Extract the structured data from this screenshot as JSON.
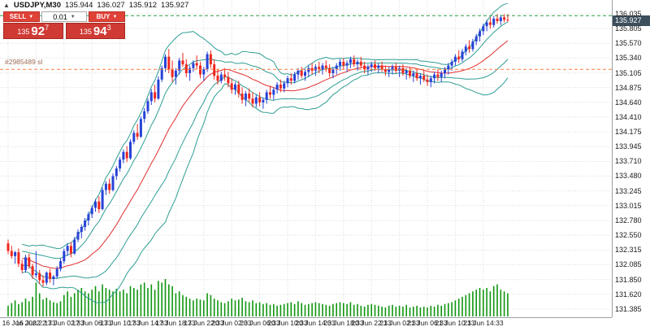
{
  "chart_info": {
    "symbol_period": "USDJPY,M30",
    "ohlc": {
      "open": "135.944",
      "high": "136.027",
      "low": "135.912",
      "close": "135.927"
    }
  },
  "trade_panel": {
    "sell_button": "SELL",
    "buy_button": "BUY",
    "lot": "0.01",
    "sell_price": {
      "major": "135",
      "pips": "92",
      "point": "7"
    },
    "buy_price": {
      "major": "135",
      "pips": "94",
      "point": "3"
    }
  },
  "order": {
    "label": "#2985489 sl",
    "sl_price": 135.16
  },
  "price_axis": {
    "current_price": "135.927",
    "ticks": [
      "136.035",
      "135.805",
      "135.570",
      "135.340",
      "135.105",
      "134.875",
      "134.640",
      "134.410",
      "134.175",
      "133.945",
      "133.710",
      "133.480",
      "133.245",
      "133.015",
      "132.780",
      "132.550",
      "132.315",
      "132.085",
      "131.850",
      "131.620",
      "131.385"
    ]
  },
  "time_axis": {
    "ticks": [
      "16 Jun 2022",
      "16 Jun 22:33",
      "17 Jun 02:33",
      "17 Jun 06:33",
      "17 Jun 10:33",
      "17 Jun 14:33",
      "17 Jun 18:33",
      "17 Jun 22:33",
      "20 Jun 02:33",
      "20 Jun 06:33",
      "20 Jun 10:33",
      "20 Jun 14:33",
      "20 Jun 18:33",
      "20 Jun 22:33",
      "21 Jun 02:33",
      "21 Jun 06:33",
      "21 Jun 10:33",
      "21 Jun 14:33"
    ]
  },
  "chart_data": {
    "type": "candlestick",
    "title": "USDJPY,M30",
    "ylim": [
      131.257,
      136.253
    ],
    "x_tick_candle_indices": [
      0,
      8,
      16,
      24,
      32,
      40,
      48,
      56,
      64,
      72,
      80,
      88,
      96,
      104,
      112,
      120,
      128,
      136
    ],
    "overlays": {
      "bollinger": {
        "period": 20,
        "deviations": [
          1,
          2
        ]
      }
    },
    "hlines": [
      {
        "name": "take-profit-line",
        "price": 136.005,
        "color": "#2f9e44",
        "style": "dashed"
      },
      {
        "name": "stop-loss-line",
        "price": 135.16,
        "color": "#ff7f3f",
        "style": "dashed"
      }
    ],
    "colors": {
      "up": "#2742d6",
      "down": "#ee281e",
      "volume": "#109610",
      "band": "#2e9e94",
      "mid": "#e03030",
      "grid": "#dcdcdc"
    },
    "candles": [
      [
        132.42,
        132.48,
        132.25,
        132.3
      ],
      [
        132.3,
        132.38,
        132.18,
        132.22
      ],
      [
        132.22,
        132.3,
        132.1,
        132.28
      ],
      [
        132.28,
        132.34,
        132.05,
        132.1
      ],
      [
        132.1,
        132.16,
        131.95,
        132.0
      ],
      [
        132.0,
        132.24,
        131.96,
        132.2
      ],
      [
        132.2,
        132.26,
        132.02,
        132.06
      ],
      [
        132.06,
        132.1,
        131.86,
        131.92
      ],
      [
        131.92,
        132.3,
        131.88,
        131.95
      ],
      [
        131.95,
        132.0,
        131.78,
        131.84
      ],
      [
        131.84,
        131.92,
        131.74,
        131.8
      ],
      [
        131.8,
        131.98,
        131.76,
        131.96
      ],
      [
        131.96,
        132.02,
        131.8,
        131.86
      ],
      [
        131.86,
        131.92,
        131.76,
        131.9
      ],
      [
        131.9,
        132.06,
        131.86,
        132.02
      ],
      [
        132.02,
        132.18,
        131.98,
        132.14
      ],
      [
        132.14,
        132.34,
        132.1,
        132.3
      ],
      [
        132.3,
        132.42,
        132.22,
        132.38
      ],
      [
        132.38,
        132.44,
        132.2,
        132.26
      ],
      [
        132.26,
        132.52,
        132.24,
        132.48
      ],
      [
        132.48,
        132.64,
        132.44,
        132.6
      ],
      [
        132.6,
        132.72,
        132.5,
        132.68
      ],
      [
        132.68,
        132.82,
        132.62,
        132.78
      ],
      [
        132.78,
        132.92,
        132.7,
        132.88
      ],
      [
        132.88,
        133.02,
        132.82,
        132.98
      ],
      [
        132.98,
        133.12,
        132.92,
        133.08
      ],
      [
        133.08,
        133.16,
        132.9,
        132.96
      ],
      [
        132.96,
        133.3,
        132.94,
        133.26
      ],
      [
        133.26,
        133.4,
        133.18,
        133.36
      ],
      [
        133.36,
        133.44,
        133.2,
        133.26
      ],
      [
        133.26,
        133.52,
        133.24,
        133.48
      ],
      [
        133.48,
        133.64,
        133.42,
        133.6
      ],
      [
        133.6,
        133.78,
        133.55,
        133.74
      ],
      [
        133.74,
        133.9,
        133.68,
        133.86
      ],
      [
        133.86,
        133.95,
        133.7,
        133.76
      ],
      [
        133.76,
        134.06,
        133.74,
        134.02
      ],
      [
        134.02,
        134.2,
        133.98,
        134.16
      ],
      [
        134.16,
        134.3,
        134.05,
        134.1
      ],
      [
        134.1,
        134.42,
        134.08,
        134.38
      ],
      [
        134.38,
        134.55,
        134.32,
        134.5
      ],
      [
        134.5,
        134.7,
        134.46,
        134.66
      ],
      [
        134.66,
        134.85,
        134.6,
        134.8
      ],
      [
        134.8,
        134.92,
        134.64,
        134.7
      ],
      [
        134.7,
        135.05,
        134.68,
        135.0
      ],
      [
        135.0,
        135.22,
        134.96,
        135.18
      ],
      [
        135.18,
        135.4,
        135.12,
        135.36
      ],
      [
        135.36,
        135.48,
        135.1,
        135.16
      ],
      [
        135.16,
        135.3,
        134.96,
        135.04
      ],
      [
        135.04,
        135.18,
        134.92,
        135.14
      ],
      [
        135.14,
        135.34,
        135.08,
        135.3
      ],
      [
        135.3,
        135.42,
        135.2,
        135.24
      ],
      [
        135.24,
        135.32,
        135.04,
        135.1
      ],
      [
        135.1,
        135.22,
        134.98,
        135.18
      ],
      [
        135.18,
        135.3,
        135.12,
        135.26
      ],
      [
        135.26,
        135.38,
        135.16,
        135.22
      ],
      [
        135.22,
        135.28,
        135.02,
        135.08
      ],
      [
        135.08,
        135.2,
        134.98,
        135.16
      ],
      [
        135.16,
        135.44,
        135.12,
        135.4
      ],
      [
        135.4,
        135.46,
        135.18,
        135.24
      ],
      [
        135.24,
        135.32,
        135.0,
        135.06
      ],
      [
        135.06,
        135.16,
        134.92,
        134.98
      ],
      [
        134.98,
        135.12,
        134.94,
        135.08
      ],
      [
        135.08,
        135.18,
        134.98,
        135.04
      ],
      [
        135.04,
        135.12,
        134.88,
        134.94
      ],
      [
        134.94,
        135.02,
        134.78,
        134.84
      ],
      [
        134.84,
        134.96,
        134.76,
        134.92
      ],
      [
        134.92,
        134.98,
        134.72,
        134.78
      ],
      [
        134.78,
        134.88,
        134.62,
        134.68
      ],
      [
        134.68,
        134.82,
        134.58,
        134.78
      ],
      [
        134.78,
        134.86,
        134.64,
        134.7
      ],
      [
        134.7,
        134.8,
        134.56,
        134.62
      ],
      [
        134.62,
        134.76,
        134.56,
        134.72
      ],
      [
        134.72,
        134.8,
        134.58,
        134.64
      ],
      [
        134.64,
        134.72,
        134.54,
        134.68
      ],
      [
        134.68,
        134.84,
        134.62,
        134.8
      ],
      [
        134.8,
        134.9,
        134.7,
        134.76
      ],
      [
        134.76,
        134.88,
        134.68,
        134.84
      ],
      [
        134.84,
        134.96,
        134.78,
        134.92
      ],
      [
        134.92,
        135.0,
        134.8,
        134.86
      ],
      [
        134.86,
        134.98,
        134.8,
        134.94
      ],
      [
        134.94,
        135.06,
        134.88,
        135.02
      ],
      [
        135.02,
        135.1,
        134.92,
        134.98
      ],
      [
        134.98,
        135.12,
        134.94,
        135.08
      ],
      [
        135.08,
        135.18,
        135.0,
        135.14
      ],
      [
        135.14,
        135.2,
        135.02,
        135.06
      ],
      [
        135.06,
        135.16,
        134.98,
        135.12
      ],
      [
        135.12,
        135.22,
        135.04,
        135.18
      ],
      [
        135.18,
        135.26,
        135.08,
        135.14
      ],
      [
        135.14,
        135.24,
        135.06,
        135.2
      ],
      [
        135.2,
        135.28,
        135.1,
        135.16
      ],
      [
        135.16,
        135.26,
        135.08,
        135.22
      ],
      [
        135.22,
        135.3,
        135.12,
        135.18
      ],
      [
        135.18,
        135.24,
        135.04,
        135.1
      ],
      [
        135.1,
        135.2,
        135.02,
        135.16
      ],
      [
        135.16,
        135.26,
        135.08,
        135.22
      ],
      [
        135.22,
        135.32,
        135.14,
        135.28
      ],
      [
        135.28,
        135.34,
        135.16,
        135.22
      ],
      [
        135.22,
        135.3,
        135.12,
        135.26
      ],
      [
        135.26,
        135.36,
        135.18,
        135.32
      ],
      [
        135.32,
        135.38,
        135.2,
        135.24
      ],
      [
        135.24,
        135.32,
        135.14,
        135.28
      ],
      [
        135.28,
        135.36,
        135.18,
        135.22
      ],
      [
        135.22,
        135.28,
        135.1,
        135.16
      ],
      [
        135.16,
        135.24,
        135.08,
        135.2
      ],
      [
        135.2,
        135.28,
        135.12,
        135.24
      ],
      [
        135.24,
        135.3,
        135.14,
        135.18
      ],
      [
        135.18,
        135.26,
        135.1,
        135.22
      ],
      [
        135.22,
        135.28,
        135.12,
        135.16
      ],
      [
        135.16,
        135.22,
        135.06,
        135.12
      ],
      [
        135.12,
        135.2,
        135.04,
        135.16
      ],
      [
        135.16,
        135.24,
        135.08,
        135.2
      ],
      [
        135.2,
        135.26,
        135.1,
        135.14
      ],
      [
        135.14,
        135.22,
        135.04,
        135.18
      ],
      [
        135.18,
        135.24,
        135.06,
        135.1
      ],
      [
        135.1,
        135.18,
        135.0,
        135.14
      ],
      [
        135.14,
        135.2,
        135.02,
        135.06
      ],
      [
        135.06,
        135.14,
        134.96,
        135.1
      ],
      [
        135.1,
        135.16,
        134.98,
        135.02
      ],
      [
        135.02,
        135.1,
        134.92,
        135.06
      ],
      [
        135.06,
        135.14,
        134.96,
        135.0
      ],
      [
        135.0,
        135.08,
        134.9,
        134.96
      ],
      [
        134.96,
        135.06,
        134.88,
        135.02
      ],
      [
        135.02,
        135.12,
        134.94,
        135.08
      ],
      [
        135.08,
        135.16,
        134.98,
        135.04
      ],
      [
        135.04,
        135.14,
        134.96,
        135.1
      ],
      [
        135.1,
        135.2,
        135.02,
        135.16
      ],
      [
        135.16,
        135.26,
        135.08,
        135.22
      ],
      [
        135.22,
        135.32,
        135.14,
        135.28
      ],
      [
        135.28,
        135.4,
        135.22,
        135.36
      ],
      [
        135.36,
        135.46,
        135.26,
        135.32
      ],
      [
        135.32,
        135.48,
        135.28,
        135.44
      ],
      [
        135.44,
        135.56,
        135.38,
        135.52
      ],
      [
        135.52,
        135.62,
        135.42,
        135.48
      ],
      [
        135.48,
        135.64,
        135.44,
        135.6
      ],
      [
        135.6,
        135.72,
        135.54,
        135.68
      ],
      [
        135.68,
        135.8,
        135.6,
        135.76
      ],
      [
        135.76,
        135.88,
        135.7,
        135.84
      ],
      [
        135.84,
        135.94,
        135.76,
        135.9
      ],
      [
        135.9,
        135.98,
        135.8,
        135.86
      ],
      [
        135.86,
        136.0,
        135.82,
        135.96
      ],
      [
        135.96,
        136.03,
        135.88,
        135.92
      ],
      [
        135.92,
        136.02,
        135.86,
        135.98
      ],
      [
        135.98,
        136.03,
        135.9,
        135.94
      ],
      [
        135.94,
        136.03,
        135.91,
        135.93
      ]
    ],
    "volumes": [
      120,
      150,
      180,
      140,
      160,
      200,
      170,
      220,
      380,
      260,
      190,
      210,
      180,
      160,
      150,
      170,
      240,
      280,
      220,
      260,
      300,
      320,
      280,
      260,
      300,
      340,
      280,
      360,
      320,
      300,
      280,
      310,
      280,
      300,
      260,
      340,
      320,
      300,
      360,
      380,
      320,
      360,
      300,
      400,
      380,
      420,
      360,
      340,
      260,
      280,
      240,
      220,
      200,
      180,
      200,
      190,
      180,
      260,
      240,
      200,
      180,
      160,
      150,
      170,
      200,
      180,
      190,
      210,
      170,
      160,
      180,
      150,
      160,
      140,
      150,
      130,
      140,
      120,
      130,
      140,
      150,
      160,
      140,
      170,
      150,
      130,
      140,
      150,
      160,
      150,
      140,
      130,
      120,
      140,
      150,
      160,
      150,
      140,
      160,
      130,
      140,
      120,
      110,
      130,
      140,
      130,
      120,
      110,
      100,
      120,
      130,
      110,
      120,
      110,
      130,
      100,
      110,
      120,
      100,
      110,
      100,
      120,
      110,
      130,
      120,
      140,
      150,
      160,
      180,
      200,
      220,
      240,
      260,
      280,
      300,
      320,
      300,
      320,
      280,
      340,
      360,
      300,
      280,
      260
    ]
  }
}
